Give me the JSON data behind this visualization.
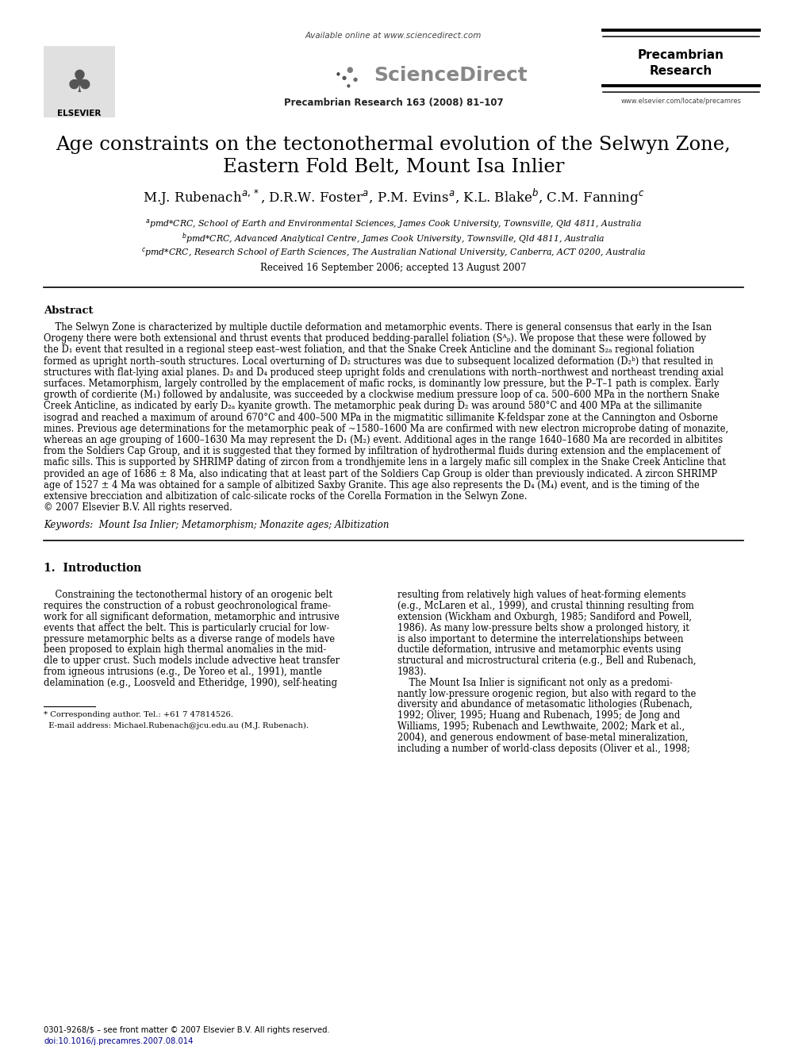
{
  "bg_color": "#ffffff",
  "title_line1": "Age constraints on the tectonothermal evolution of the Selwyn Zone,",
  "title_line2": "Eastern Fold Belt, Mount Isa Inlier",
  "authors_raw": "M.J. Rubenach$^{a,*}$, D.R.W. Foster$^{a}$, P.M. Evins$^{a}$, K.L. Blake$^{b}$, C.M. Fanning$^{c}$",
  "affil_a": "$^{a}$pmd*CRC, School of Earth and Environmental Sciences, James Cook University, Townsville, Qld 4811, Australia",
  "affil_b": "$^{b}$pmd*CRC, Advanced Analytical Centre, James Cook University, Townsville, Qld 4811, Australia",
  "affil_c": "$^{c}$pmd*CRC, Research School of Earth Sciences, The Australian National University, Canberra, ACT 0200, Australia",
  "received": "Received 16 September 2006; accepted 13 August 2007",
  "journal_ref": "Precambrian Research 163 (2008) 81–107",
  "available_online": "Available online at www.sciencedirect.com",
  "journal_name_1": "Precambrian",
  "journal_name_2": "Research",
  "url": "www.elsevier.com/locate/precamres",
  "abstract_title": "Abstract",
  "abstract_lines": [
    "    The Selwyn Zone is characterized by multiple ductile deformation and metamorphic events. There is general consensus that early in the Isan",
    "Orogeny there were both extensional and thrust events that produced bedding-parallel foliation (Sᴬₚ). We propose that these were followed by",
    "the D₁ event that resulted in a regional steep east–west foliation, and that the Snake Creek Anticline and the dominant S₂ₐ regional foliation",
    "formed as upright north–south structures. Local overturning of D₂ structures was due to subsequent localized deformation (D₂ᵇ) that resulted in",
    "structures with flat-lying axial planes. D₃ and D₄ produced steep upright folds and crenulations with north–northwest and northeast trending axial",
    "surfaces. Metamorphism, largely controlled by the emplacement of mafic rocks, is dominantly low pressure, but the P–T–1 path is complex. Early",
    "growth of cordierite (M₁) followed by andalusite, was succeeded by a clockwise medium pressure loop of ca. 500–600 MPa in the northern Snake",
    "Creek Anticline, as indicated by early D₂ₐ kyanite growth. The metamorphic peak during D₂ was around 580°C and 400 MPa at the sillimanite",
    "isograd and reached a maximum of around 670°C and 400–500 MPa in the migmatitic sillimanite K-feldspar zone at the Cannington and Osborne",
    "mines. Previous age determinations for the metamorphic peak of ~1580–1600 Ma are confirmed with new electron microprobe dating of monazite,",
    "whereas an age grouping of 1600–1630 Ma may represent the D₁ (M₂) event. Additional ages in the range 1640–1680 Ma are recorded in albitites",
    "from the Soldiers Cap Group, and it is suggested that they formed by infiltration of hydrothermal fluids during extension and the emplacement of",
    "mafic sills. This is supported by SHRIMP dating of zircon from a trondhjemite lens in a largely mafic sill complex in the Snake Creek Anticline that",
    "provided an age of 1686 ± 8 Ma, also indicating that at least part of the Soldiers Cap Group is older than previously indicated. A zircon SHRIMP",
    "age of 1527 ± 4 Ma was obtained for a sample of albitized Saxby Granite. This age also represents the D₄ (M₄) event, and is the timing of the",
    "extensive brecciation and albitization of calc-silicate rocks of the Corella Formation in the Selwyn Zone.",
    "© 2007 Elsevier B.V. All rights reserved."
  ],
  "keywords": "Keywords:  Mount Isa Inlier; Metamorphism; Monazite ages; Albitization",
  "section1_title": "1.  Introduction",
  "col1_lines": [
    "    Constraining the tectonothermal history of an orogenic belt",
    "requires the construction of a robust geochronological frame-",
    "work for all significant deformation, metamorphic and intrusive",
    "events that affect the belt. This is particularly crucial for low-",
    "pressure metamorphic belts as a diverse range of models have",
    "been proposed to explain high thermal anomalies in the mid-",
    "dle to upper crust. Such models include advective heat transfer",
    "from igneous intrusions (e.g., De Yoreo et al., 1991), mantle",
    "delamination (e.g., Loosveld and Etheridge, 1990), self-heating"
  ],
  "col2_lines": [
    "resulting from relatively high values of heat-forming elements",
    "(e.g., McLaren et al., 1999), and crustal thinning resulting from",
    "extension (Wickham and Oxburgh, 1985; Sandiford and Powell,",
    "1986). As many low-pressure belts show a prolonged history, it",
    "is also important to determine the interrelationships between",
    "ductile deformation, intrusive and metamorphic events using",
    "structural and microstructural criteria (e.g., Bell and Rubenach,",
    "1983).",
    "    The Mount Isa Inlier is significant not only as a predomi-",
    "nantly low-pressure orogenic region, but also with regard to the",
    "diversity and abundance of metasomatic lithologies (Rubenach,",
    "1992; Oliver, 1995; Huang and Rubenach, 1995; de Jong and",
    "Williams, 1995; Rubenach and Lewthwaite, 2002; Mark et al.,",
    "2004), and generous endowment of base-metal mineralization,",
    "including a number of world-class deposits (Oliver et al., 1998;"
  ],
  "footer_issn": "0301-9268/$ – see front matter © 2007 Elsevier B.V. All rights reserved.",
  "footer_doi": "doi:10.1016/j.precamres.2007.08.014",
  "corresponding_line1": "* Corresponding author. Tel.: +61 7 47814526.",
  "corresponding_line2": "  E-mail address: Michael.Rubenach@jcu.edu.au (M.J. Rubenach).",
  "elsevier_label": "ELSEVIER",
  "sciencedirect_label": "ScienceDirect"
}
